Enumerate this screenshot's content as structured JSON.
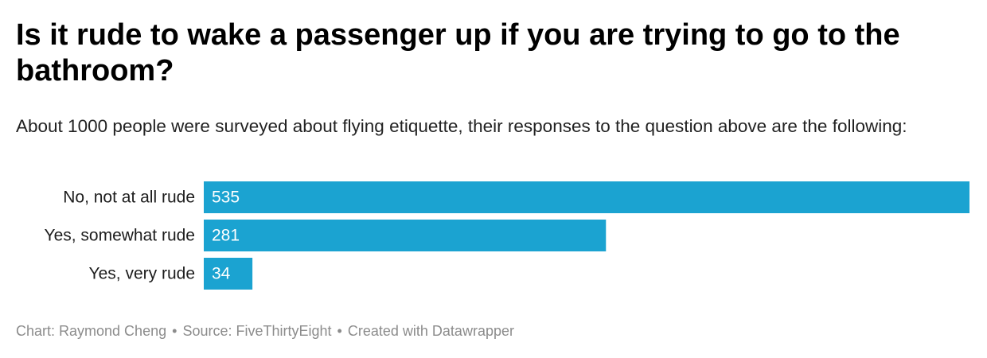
{
  "title": "Is it rude to wake a passenger up if you are trying to go to the bathroom?",
  "subtitle": "About 1000 people were surveyed about flying etiquette, their responses to the question above are the following:",
  "footer": {
    "chart_credit": "Chart: Raymond Cheng",
    "source": "Source: FiveThirtyEight",
    "created_with": "Created with Datawrapper",
    "separator": "•"
  },
  "colors": {
    "bar": "#1ba3d1",
    "bar_label": "#ffffff",
    "category_label": "#1d1d1d"
  },
  "chart_data": {
    "type": "bar",
    "orientation": "horizontal",
    "title": "Is it rude to wake a passenger up if you are trying to go to the bathroom?",
    "categories": [
      "No, not at all rude",
      "Yes, somewhat rude",
      "Yes, very rude"
    ],
    "values": [
      535,
      281,
      34
    ],
    "xlim": [
      0,
      535
    ],
    "grid": false,
    "value_labels": "inside-bar"
  }
}
